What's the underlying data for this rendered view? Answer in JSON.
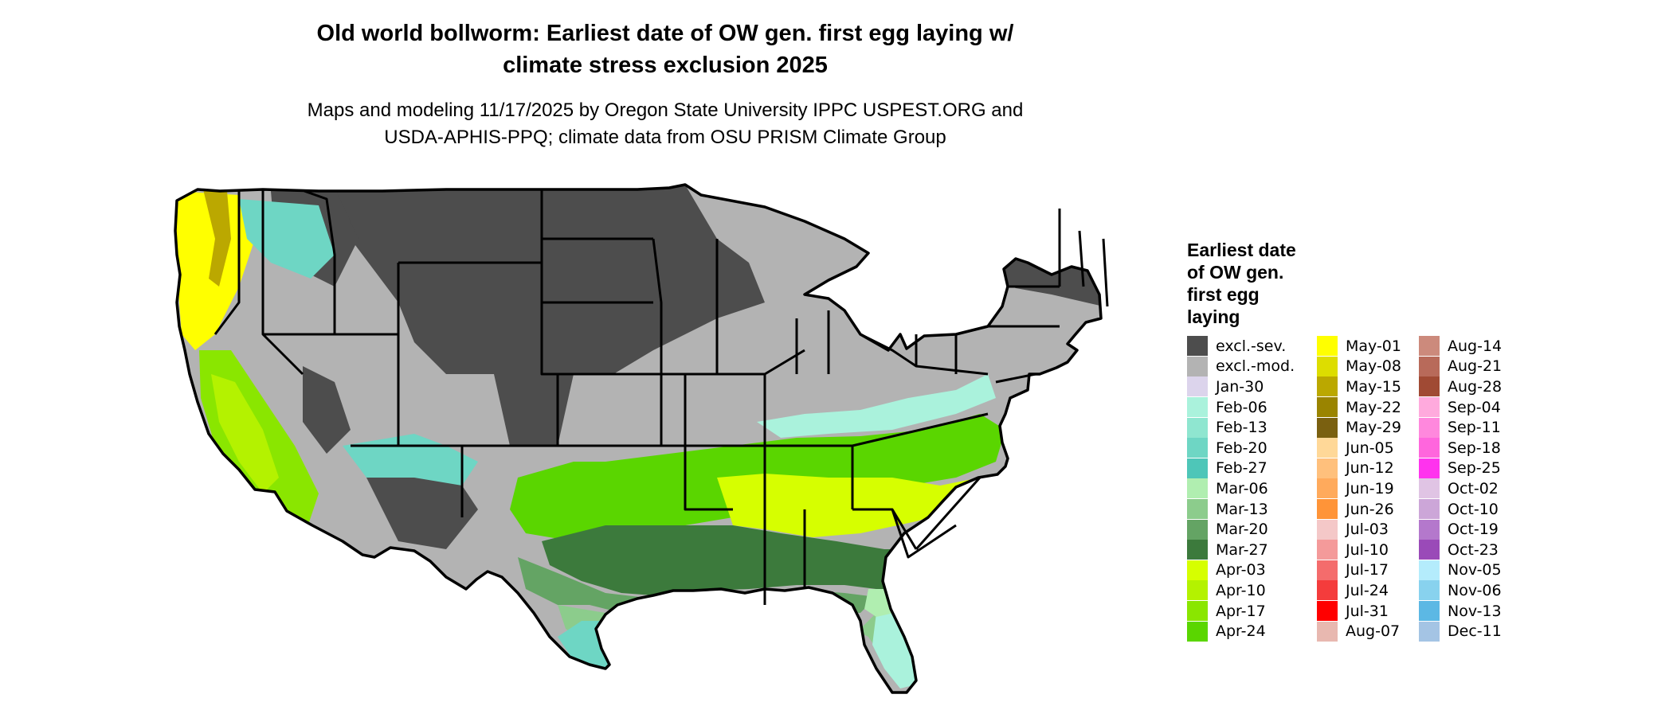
{
  "title_lines": [
    "Old world bollworm: Earliest date of OW gen. first egg laying w/",
    "climate stress exclusion 2025"
  ],
  "subtitle_lines": [
    "Maps and modeling 11/17/2025 by Oregon State University IPPC USPEST.ORG and",
    "USDA-APHIS-PPQ; climate data from OSU PRISM Climate Group"
  ],
  "legend": {
    "title_lines": [
      "Earliest date",
      "of OW gen.",
      "first egg",
      "laying"
    ],
    "columns": [
      [
        {
          "label": "excl.-sev.",
          "color": "#4d4d4d"
        },
        {
          "label": "excl.-mod.",
          "color": "#b3b3b3"
        },
        {
          "label": "Jan-30",
          "color": "#dcd4ec"
        },
        {
          "label": "Feb-06",
          "color": "#aaf2dc"
        },
        {
          "label": "Feb-13",
          "color": "#8fe6d0"
        },
        {
          "label": "Feb-20",
          "color": "#6ed6c4"
        },
        {
          "label": "Feb-27",
          "color": "#4ec6b8"
        },
        {
          "label": "Mar-06",
          "color": "#b0eeb0"
        },
        {
          "label": "Mar-13",
          "color": "#8ccc8c"
        },
        {
          "label": "Mar-20",
          "color": "#64a464"
        },
        {
          "label": "Mar-27",
          "color": "#3c7a3c"
        },
        {
          "label": "Apr-03",
          "color": "#d6ff00"
        },
        {
          "label": "Apr-10",
          "color": "#b4f200"
        },
        {
          "label": "Apr-17",
          "color": "#8ae600"
        },
        {
          "label": "Apr-24",
          "color": "#5ad600"
        }
      ],
      [
        {
          "label": "May-01",
          "color": "#ffff00"
        },
        {
          "label": "May-08",
          "color": "#dddd00"
        },
        {
          "label": "May-15",
          "color": "#bba800"
        },
        {
          "label": "May-22",
          "color": "#9a8400"
        },
        {
          "label": "May-29",
          "color": "#7a6010"
        },
        {
          "label": "Jun-05",
          "color": "#ffd898"
        },
        {
          "label": "Jun-12",
          "color": "#ffc07c"
        },
        {
          "label": "Jun-19",
          "color": "#ffaa5c"
        },
        {
          "label": "Jun-26",
          "color": "#ff9438"
        },
        {
          "label": "Jul-03",
          "color": "#f4c8c8"
        },
        {
          "label": "Jul-10",
          "color": "#f49a9a"
        },
        {
          "label": "Jul-17",
          "color": "#f46c6c"
        },
        {
          "label": "Jul-24",
          "color": "#f43c3c"
        },
        {
          "label": "Jul-31",
          "color": "#ff0000"
        },
        {
          "label": "Aug-07",
          "color": "#e8b8b0"
        }
      ],
      [
        {
          "label": "Aug-14",
          "color": "#cc8a7c"
        },
        {
          "label": "Aug-21",
          "color": "#b86a5a"
        },
        {
          "label": "Aug-28",
          "color": "#a04a34"
        },
        {
          "label": "Sep-04",
          "color": "#ffaadd"
        },
        {
          "label": "Sep-11",
          "color": "#ff88dd"
        },
        {
          "label": "Sep-18",
          "color": "#ff66dd"
        },
        {
          "label": "Sep-25",
          "color": "#ff33ee"
        },
        {
          "label": "Oct-02",
          "color": "#e0c4e4"
        },
        {
          "label": "Oct-10",
          "color": "#cca6d8"
        },
        {
          "label": "Oct-19",
          "color": "#b478cc"
        },
        {
          "label": "Oct-23",
          "color": "#9a4ab8"
        },
        {
          "label": "Nov-05",
          "color": "#b4ecfc"
        },
        {
          "label": "Nov-06",
          "color": "#88d2ee"
        },
        {
          "label": "Nov-13",
          "color": "#5cb8e4"
        },
        {
          "label": "Dec-11",
          "color": "#a4c4e4"
        }
      ]
    ]
  },
  "map": {
    "outline_color": "#000000",
    "regions": [
      {
        "zone": "excl.-sev.",
        "color": "#4d4d4d"
      },
      {
        "zone": "excl.-mod.",
        "color": "#b3b3b3"
      },
      {
        "zone": "Apr-03",
        "color": "#d6ff00"
      },
      {
        "zone": "Apr-10",
        "color": "#b4f200"
      },
      {
        "zone": "Apr-17",
        "color": "#8ae600"
      },
      {
        "zone": "Apr-24",
        "color": "#5ad600"
      },
      {
        "zone": "Mar-06",
        "color": "#b0eeb0"
      },
      {
        "zone": "Mar-13",
        "color": "#8ccc8c"
      },
      {
        "zone": "Mar-20",
        "color": "#64a464"
      },
      {
        "zone": "Mar-27",
        "color": "#3c7a3c"
      },
      {
        "zone": "Feb-06",
        "color": "#aaf2dc"
      },
      {
        "zone": "Feb-20",
        "color": "#6ed6c4"
      },
      {
        "zone": "May-01",
        "color": "#ffff00"
      },
      {
        "zone": "May-15",
        "color": "#bba800"
      },
      {
        "zone": "Jun-12",
        "color": "#ffc07c"
      },
      {
        "zone": "Jul-24",
        "color": "#f43c3c"
      }
    ]
  }
}
